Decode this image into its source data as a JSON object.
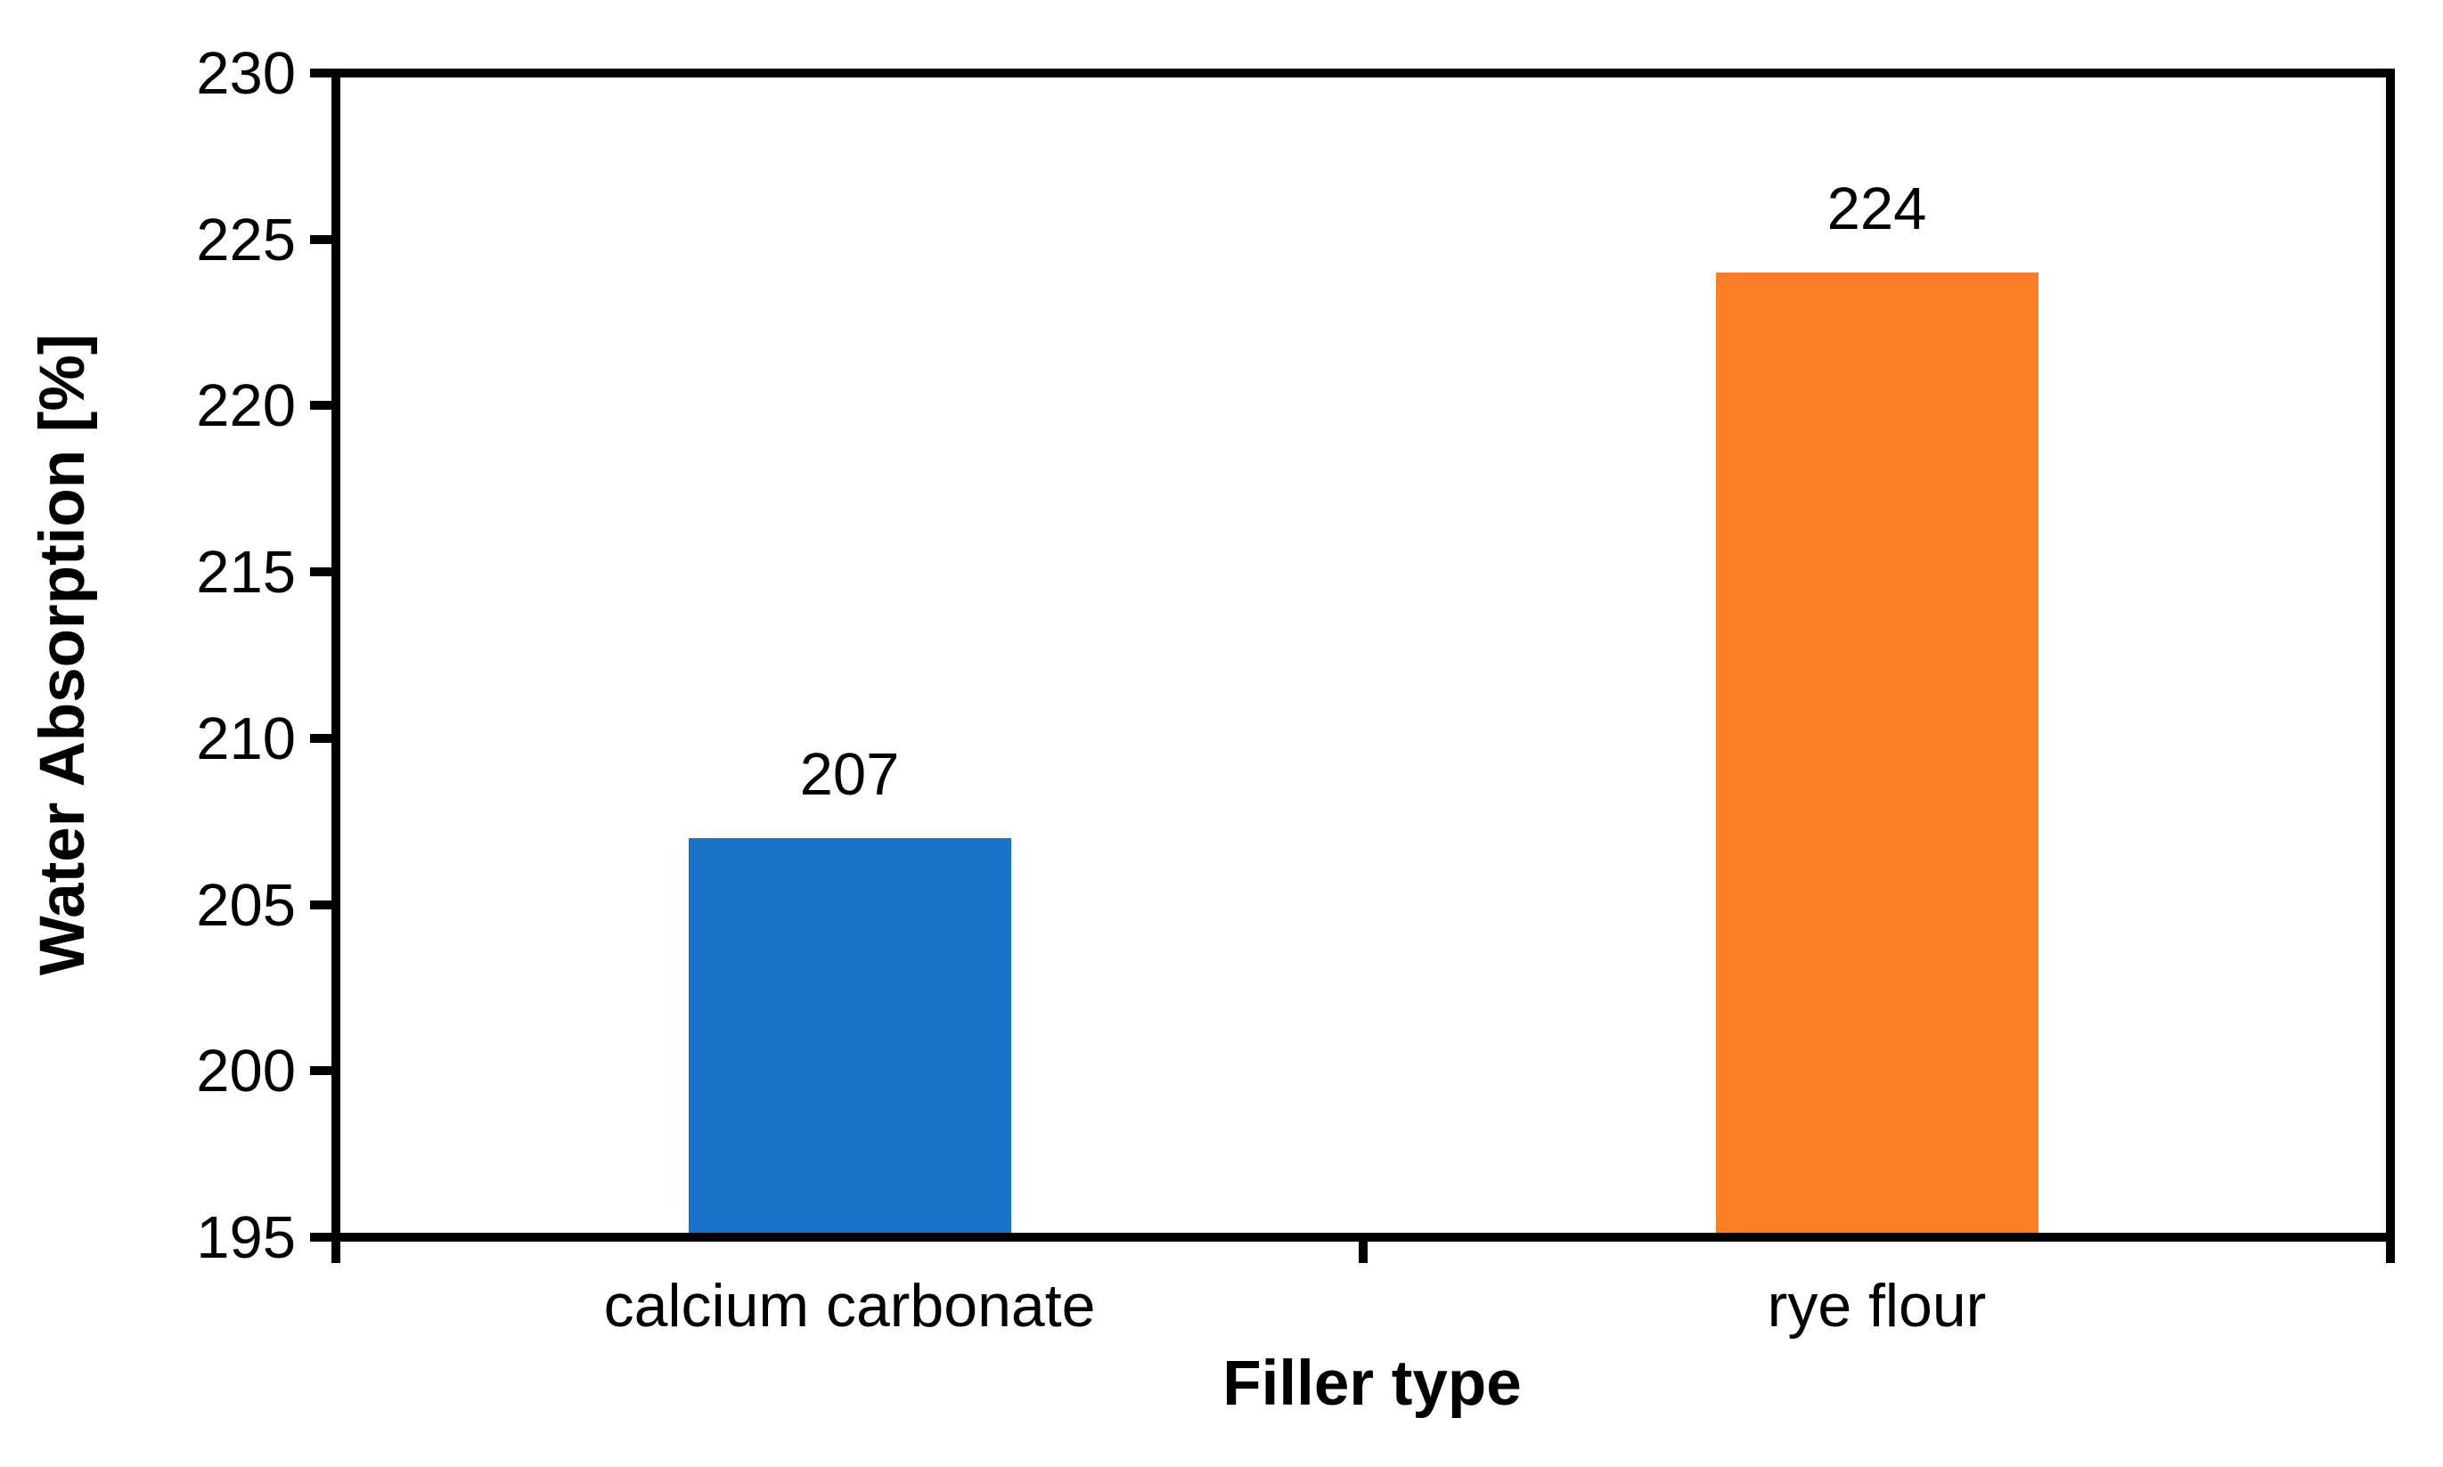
{
  "chart_data": {
    "type": "bar",
    "title": "",
    "categories": [
      "calcium carbonate",
      "rye flour"
    ],
    "values": [
      207,
      224
    ],
    "series": [
      {
        "name": "Water Absorption",
        "values": [
          207,
          224
        ],
        "data_labels": [
          "207",
          "224"
        ]
      }
    ],
    "bar_colors": [
      "#1772C9",
      "#FC7E27"
    ],
    "xlabel": "Filler type",
    "ylabel": "Water Absorption [%]",
    "ylim": [
      195,
      230
    ],
    "yticks": [
      195,
      200,
      205,
      210,
      215,
      220,
      225,
      230
    ],
    "grid": false,
    "legend_position": "none",
    "axis_color": "#000000",
    "background_color": "#ffffff",
    "data_label_color": "#000000"
  }
}
